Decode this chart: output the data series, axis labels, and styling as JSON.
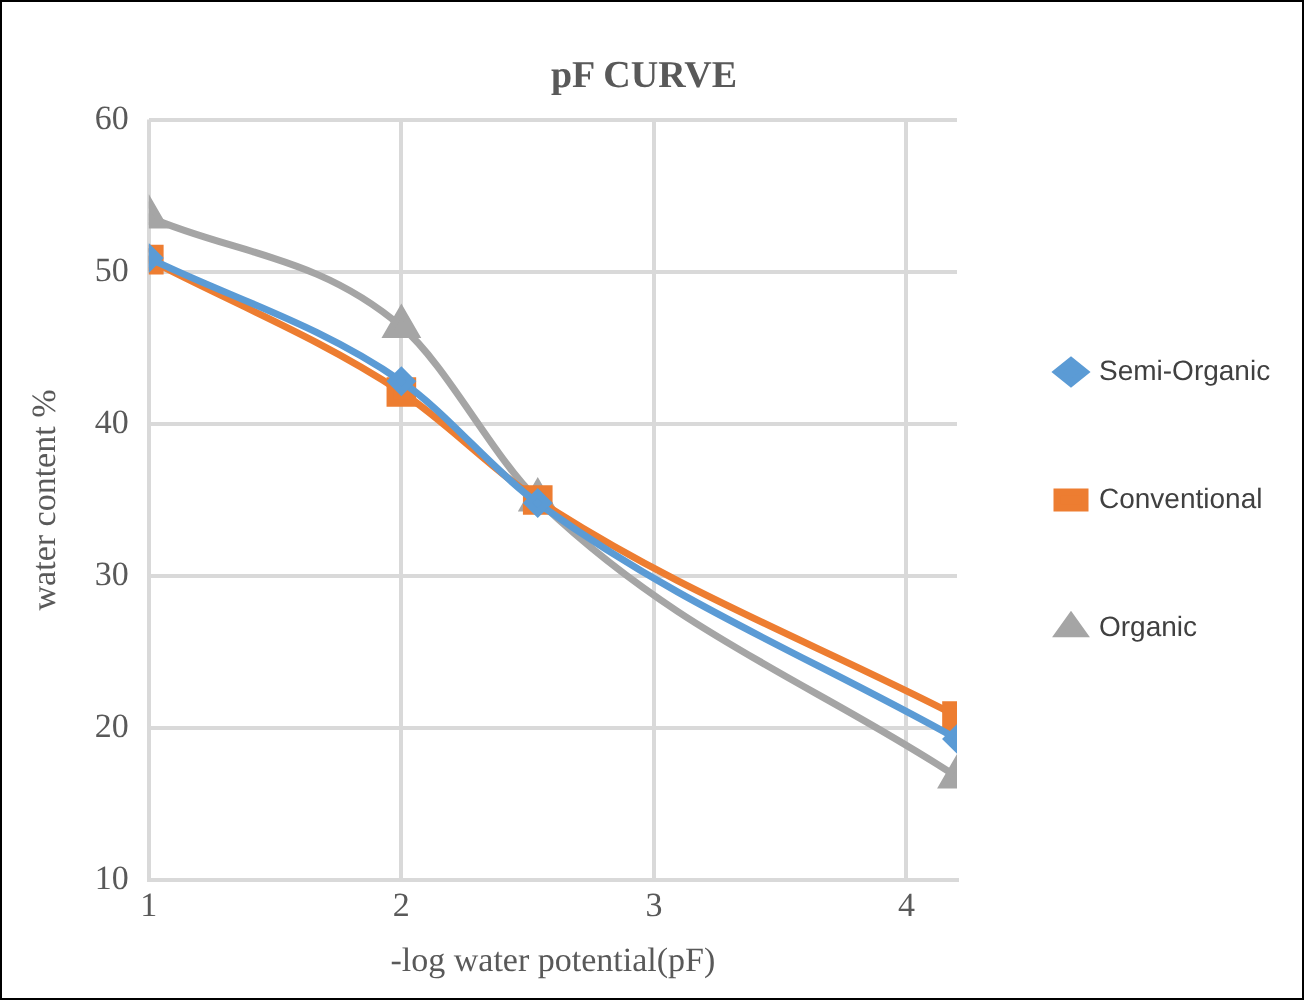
{
  "chart_data": {
    "type": "line",
    "title": "pF CURVE",
    "xlabel": "-log water potential(pF)",
    "ylabel": "water content %",
    "x": [
      1,
      2,
      2.54,
      4.2
    ],
    "series": [
      {
        "name": "Semi-Organic",
        "color": "#5b9bd5",
        "marker": "diamond",
        "values": [
          50.9,
          42.8,
          34.8,
          19.3
        ]
      },
      {
        "name": "Conventional",
        "color": "#ed7d31",
        "marker": "square",
        "values": [
          50.8,
          42.1,
          35.0,
          20.8
        ]
      },
      {
        "name": "Organic",
        "color": "#a5a5a5",
        "marker": "triangle",
        "values": [
          53.6,
          46.4,
          35.0,
          16.8
        ]
      }
    ],
    "xlim": [
      1,
      4.2
    ],
    "xticks": [
      1,
      2,
      3,
      4
    ],
    "ylim": [
      10,
      60
    ],
    "yticks": [
      10,
      20,
      30,
      40,
      50,
      60
    ],
    "grid": true,
    "legend": "right",
    "line_style": "solid"
  }
}
